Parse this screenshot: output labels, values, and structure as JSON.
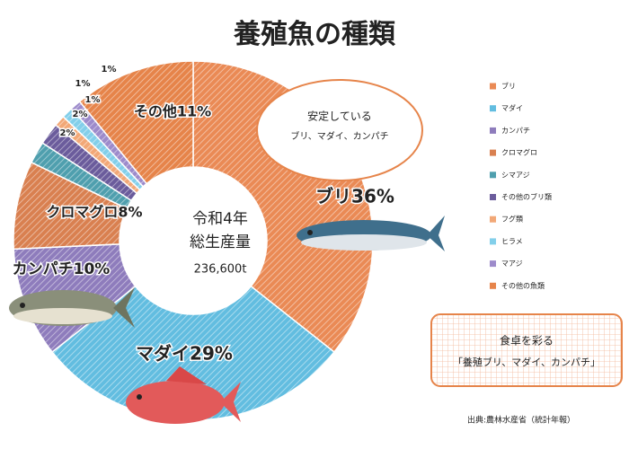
{
  "chart_data": {
    "type": "donut",
    "title": "養殖魚の種類",
    "categories": [
      "ブリ",
      "マダイ",
      "カンパチ",
      "クロマグロ",
      "シマアジ",
      "その他のブリ類",
      "フグ類",
      "ヒラメ",
      "マアジ",
      "その他の魚類"
    ],
    "values": [
      36,
      29,
      10,
      8,
      2,
      2,
      1,
      1,
      1,
      11
    ],
    "value_labels": [
      "ブリ36%",
      "マダイ29%",
      "カンパチ10%",
      "クロマグロ8%",
      "2%",
      "2%",
      "1%",
      "1%",
      "1%",
      "その他11%"
    ],
    "colors": [
      "#ea8a55",
      "#62bde0",
      "#8e7cbc",
      "#d98050",
      "#4f9fae",
      "#6b5c9c",
      "#f2a877",
      "#82cfea",
      "#9d8bcb",
      "#e6844a"
    ],
    "center_text": [
      "令和4年",
      "総生産量",
      "236,600t"
    ],
    "note": [
      "安定している",
      "ブリ、マダイ、カンパチ"
    ],
    "box_text": [
      "食卓を彩る",
      "「養殖ブリ、マダイ、カンパチ」"
    ],
    "source": "出典:農林水産省（統計年報）"
  }
}
